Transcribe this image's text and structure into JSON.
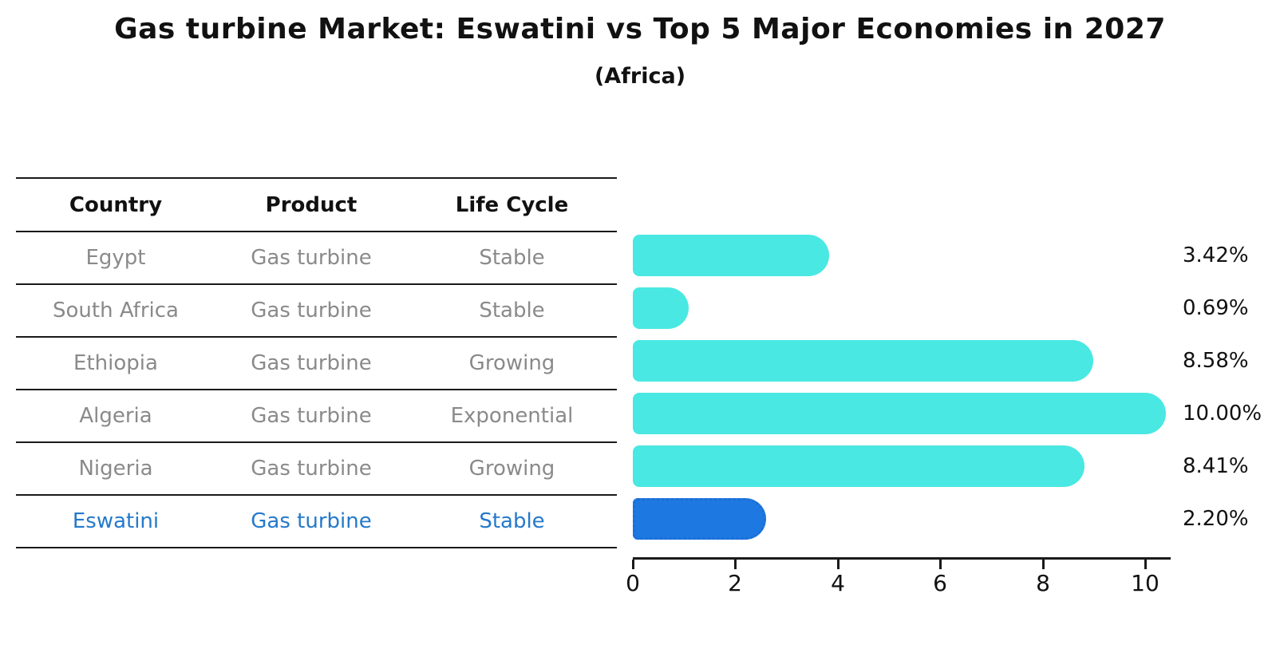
{
  "title": "Gas turbine Market: Eswatini vs Top 5 Major Economies in 2027",
  "subtitle": "(Africa)",
  "table": {
    "headers": {
      "country": "Country",
      "product": "Product",
      "life_cycle": "Life Cycle"
    },
    "rows": [
      {
        "country": "Egypt",
        "product": "Gas turbine",
        "life_cycle": "Stable"
      },
      {
        "country": "South Africa",
        "product": "Gas turbine",
        "life_cycle": "Stable"
      },
      {
        "country": "Ethiopia",
        "product": "Gas turbine",
        "life_cycle": "Growing"
      },
      {
        "country": "Algeria",
        "product": "Gas turbine",
        "life_cycle": "Exponential"
      },
      {
        "country": "Nigeria",
        "product": "Gas turbine",
        "life_cycle": "Growing"
      },
      {
        "country": "Eswatini",
        "product": "Gas turbine",
        "life_cycle": "Stable"
      }
    ]
  },
  "chart_data": {
    "type": "bar",
    "orientation": "horizontal",
    "title": "Gas turbine Market: Eswatini vs Top 5 Major Economies in 2027",
    "subtitle": "(Africa)",
    "categories": [
      "Egypt",
      "South Africa",
      "Ethiopia",
      "Algeria",
      "Nigeria",
      "Eswatini"
    ],
    "values": [
      3.42,
      0.69,
      8.58,
      10.0,
      8.41,
      2.2
    ],
    "value_labels": [
      "3.42%",
      "0.69%",
      "8.58%",
      "10.00%",
      "8.41%",
      "2.20%"
    ],
    "xlabel": "",
    "ylabel": "",
    "xlim": [
      0,
      10.5
    ],
    "xticks": [
      0,
      2,
      4,
      6,
      8,
      10
    ],
    "grid": false,
    "legend": false,
    "highlight_index": 5,
    "bar_color": "#4ae8e2",
    "highlight_bar_color": "#1e78e2",
    "highlight_text_color": "#2479cb"
  },
  "axis": {
    "ticks": [
      "0",
      "2",
      "4",
      "6",
      "8",
      "10"
    ]
  }
}
